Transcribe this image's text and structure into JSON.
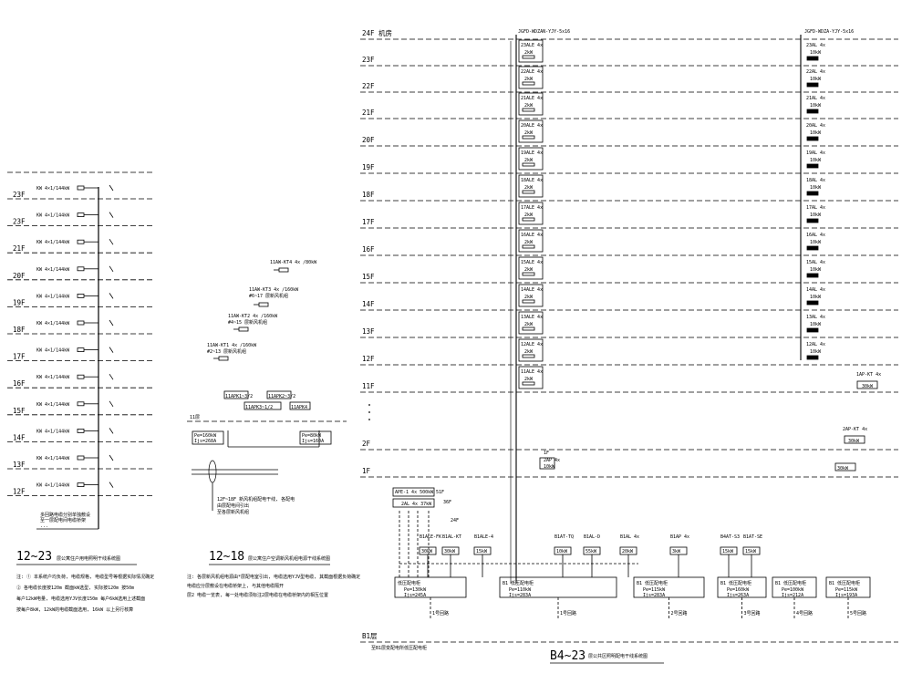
{
  "left_panel": {
    "floors": [
      "23F",
      "23F",
      "21F",
      "20F",
      "19F",
      "18F",
      "17F",
      "16F",
      "15F",
      "14F",
      "13F",
      "12F"
    ],
    "branch_label": "KW 4×1/144kW",
    "feeder_note_lines": [
      "多回路电缆分别单独敷设",
      "至一层配电间电缆桥架",
      "..."
    ],
    "title_main": "12~23",
    "title_sub": "层公寓住户用电照明干线系统图",
    "notes": [
      "注: ① 本系统户均负荷, 电缆规格, 电缆型号等根据实际情况确定",
      "② 各电缆长度按120m 截面kW选型, 实际按120m 按50m",
      "每户12kW电量, 电缆选用YJV长度150m 每户6kW选用上述截面",
      "按每户8kW, 12kW的电缆截面选用, 16kW 以上另行核算"
    ]
  },
  "middle_panel": {
    "ahu_labels": [
      "11AW-KT4 4x /80kW",
      "11AW-KT3 4x /160kW",
      "#6~17 层新风机组",
      "11AW-KT2 4x /160kW",
      "#4~15 层新风机组",
      "11AW-KT1 4x /160kW",
      "#2~13 层新风机组"
    ],
    "boxes": [
      "11APK1~3/2",
      "11APK2~3/2",
      "11APK3~1/2",
      "11APK4"
    ],
    "floor_label": "11层",
    "load_left": [
      "Pe=160kW",
      "Ijs=268A"
    ],
    "load_right": [
      "Pe=80kW",
      "Ijs=160A"
    ],
    "callout": [
      "12F~18F 新风机组配电干线, 各配电",
      "由层配电间引出",
      "至各层新风机组"
    ],
    "title_main": "12~18",
    "title_sub": "层公寓住户空调新风机组电源干线系统图",
    "notes": [
      "注: 各层新风机组电源由*层配电室引出, 电缆选用YJV型电缆, 其截面根据负荷确定",
      "电缆应分层敷设在电缆桥架上, 与其他电缆隔开",
      "层2 电缆一览表, 每一处电缆须标注2层电缆在电缆桥架内的相互位置"
    ]
  },
  "right_panel": {
    "floors": [
      "24F 机房",
      "23F",
      "22F",
      "21F",
      "20F",
      "19F",
      "18F",
      "17F",
      "16F",
      "15F",
      "14F",
      "13F",
      "12F",
      "11F",
      "2F",
      "1F",
      "B1层"
    ],
    "riser1_header": "JGFD-WDZAN-YJY-5x16",
    "riser2_header": "JGFD-WDZA-YJY-5x16",
    "riser1_boxes": [
      "23ALE 4x",
      "22ALE 4x",
      "21ALE 4x",
      "20ALE 4x",
      "19ALE 4x",
      "18ALE 4x",
      "17ALE 4x",
      "16ALE 4x",
      "15ALE 4x",
      "14ALE 4x",
      "13ALE 4x",
      "12ALE 4x",
      "11ALE 4x"
    ],
    "riser1_kw": "2kW",
    "riser2_boxes": [
      "23AL 4x",
      "22AL 4x",
      "21AL 4x",
      "20AL 4x",
      "19AL 4x",
      "18AL 4x",
      "17AL 4x",
      "16AL 4x",
      "15AL 4x",
      "14AL 4x",
      "13AL 4x",
      "12AL 4x"
    ],
    "riser2_kw": "10kW",
    "side_boxes": [
      "1AP-KT 4x",
      "30kW",
      "2AP-KT 4x",
      "30kW",
      "30kW",
      "1F",
      "2AP 4x",
      "10kW"
    ],
    "rooftop": [
      "APE-1 4x 500kW",
      "51F",
      "2AL 4x 37kW",
      "36F",
      "24F"
    ],
    "feeders": [
      {
        "name": "B1ALE-FK",
        "kw": "30kW"
      },
      {
        "name": "B1AL-KT",
        "kw": "30kW"
      },
      {
        "name": "B1ALE-4",
        "kw": "15kW"
      },
      {
        "name": "B1AT-TQ",
        "kw": "10kW"
      },
      {
        "name": "B1AL-D",
        "kw": "55kW"
      },
      {
        "name": "B1AL 4x",
        "kw": "20kW"
      },
      {
        "name": "B1AP 4x",
        "kw": "3kW"
      },
      {
        "name": "B4AT-S3",
        "kw": "15kW"
      },
      {
        "name": "B1AT-SE",
        "kw": "15kW"
      }
    ],
    "panels": [
      {
        "name": "低压配电柜",
        "pe": "Pe=130kW",
        "ijs": "Ijs=245A",
        "tag": "1号回路"
      },
      {
        "name": "B1 低压配电柜",
        "pe": "Pe=110kW",
        "ijs": "Ijs=283A",
        "tag": "1号回路"
      },
      {
        "name": "B1 低压配电柜",
        "pe": "Pe=115kW",
        "ijs": "Ijs=283A",
        "tag": "2号回路"
      },
      {
        "name": "B1 低压配电柜",
        "pe": "Pe=160kW",
        "ijs": "Ijs=263A",
        "tag": "3号回路"
      },
      {
        "name": "B1 低压配电柜",
        "pe": "Pe=100kW",
        "ijs": "Ijs=212A",
        "tag": "4号回路"
      },
      {
        "name": "B1 低压配电柜",
        "pe": "Pe=115kW",
        "ijs": "Ijs=193A",
        "tag": "5号回路"
      }
    ],
    "b1_note": "至B1层变配电所低压配电柜",
    "title_main": "B4~23",
    "title_sub": "层公共区照明配电干线系统图"
  }
}
